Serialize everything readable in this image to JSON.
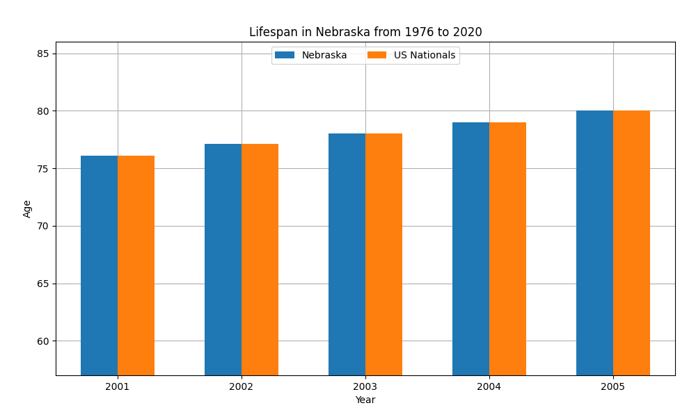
{
  "chart_data": {
    "type": "bar",
    "title": "Lifespan in Nebraska from 1976 to 2020",
    "x_label": "Year",
    "y_label": "Age",
    "categories": [
      "2001",
      "2002",
      "2003",
      "2004",
      "2005"
    ],
    "series": [
      {
        "name": "Nebraska",
        "values": [
          76.1,
          77.1,
          78.0,
          79.0,
          80.0
        ]
      },
      {
        "name": "US Nationals",
        "values": [
          76.1,
          77.1,
          78.0,
          79.0,
          80.0
        ]
      }
    ],
    "ylim": [
      57,
      86
    ],
    "yticks": [
      60,
      65,
      70,
      75,
      80,
      85
    ],
    "grid": true,
    "legend": "upper center"
  }
}
